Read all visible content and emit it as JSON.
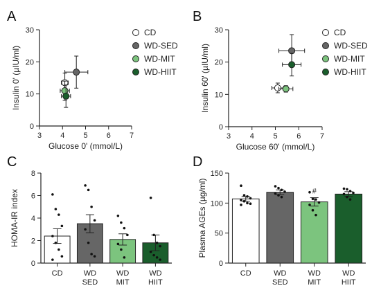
{
  "panels": [
    {
      "letter": "A"
    },
    {
      "letter": "B"
    },
    {
      "letter": "C"
    },
    {
      "letter": "D"
    }
  ],
  "chart_data": [
    {
      "type": "scatter",
      "panel": "A",
      "xlabel": "Glucose 0' (mmol/L)",
      "ylabel": "Insulin 0' (µIU/ml)",
      "xlim": [
        3,
        7
      ],
      "ylim": [
        0,
        30
      ],
      "xticks": [
        3,
        4,
        5,
        6,
        7
      ],
      "yticks": [
        0,
        10,
        20,
        30
      ],
      "legend_position": "right",
      "series": [
        {
          "name": "CD",
          "color": "#ffffff",
          "x": 4.1,
          "y": 13.5,
          "xerr": 0.15,
          "yerr": 3.0
        },
        {
          "name": "WD-SED",
          "color": "#666666",
          "x": 4.6,
          "y": 16.8,
          "xerr": 0.5,
          "yerr": 5.0
        },
        {
          "name": "WD-MIT",
          "color": "#7cc47e",
          "x": 4.1,
          "y": 11.0,
          "xerr": 0.2,
          "yerr": 3.0
        },
        {
          "name": "WD-HIIT",
          "color": "#1a5e2c",
          "x": 4.15,
          "y": 9.3,
          "xerr": 0.2,
          "yerr": 3.5
        }
      ]
    },
    {
      "type": "scatter",
      "panel": "B",
      "xlabel": "Glucose 60' (mmol/L)",
      "ylabel": "Insulin 60' (µIU/ml)",
      "xlim": [
        3,
        7
      ],
      "ylim": [
        0,
        30
      ],
      "xticks": [
        3,
        4,
        5,
        6,
        7
      ],
      "yticks": [
        0,
        10,
        20,
        30
      ],
      "legend_position": "right",
      "series": [
        {
          "name": "CD",
          "color": "#ffffff",
          "x": 5.1,
          "y": 12.0,
          "xerr": 0.25,
          "yerr": 1.5
        },
        {
          "name": "WD-SED",
          "color": "#666666",
          "x": 5.7,
          "y": 23.5,
          "xerr": 0.55,
          "yerr": 5.0
        },
        {
          "name": "WD-MIT",
          "color": "#7cc47e",
          "x": 5.45,
          "y": 11.7,
          "xerr": 0.3,
          "yerr": 1.0
        },
        {
          "name": "WD-HIIT",
          "color": "#1a5e2c",
          "x": 5.7,
          "y": 19.2,
          "xerr": 0.4,
          "yerr": 3.5
        }
      ]
    },
    {
      "type": "bar",
      "panel": "C",
      "ylabel": "HOMA-IR index",
      "ylim": [
        0,
        8
      ],
      "yticks": [
        0,
        2,
        4,
        6,
        8
      ],
      "categories": [
        [
          "CD"
        ],
        [
          "WD",
          "SED"
        ],
        [
          "WD",
          "MIT"
        ],
        [
          "WD",
          "HIIT"
        ]
      ],
      "values": [
        2.4,
        3.5,
        2.1,
        1.8
      ],
      "errors": [
        0.65,
        0.8,
        0.5,
        0.7
      ],
      "colors": [
        "#ffffff",
        "#666666",
        "#7cc47e",
        "#1a5e2c"
      ],
      "points": [
        [
          6.1,
          4.8,
          4.3,
          3.3,
          2.4,
          1.8,
          1.2,
          0.6,
          0.3
        ],
        [
          6.9,
          6.5,
          5.0,
          3.8,
          3.0,
          1.8,
          0.8,
          0.6
        ],
        [
          4.2,
          3.6,
          3.1,
          2.5,
          1.7,
          1.2,
          0.5
        ],
        [
          5.8,
          2.5,
          1.8,
          1.5,
          1.0,
          0.7,
          0.5,
          0.3
        ]
      ],
      "annotations": [
        "",
        "",
        "",
        ""
      ]
    },
    {
      "type": "bar",
      "panel": "D",
      "ylabel": "Plasma AGEs (µg/ml)",
      "ylim": [
        0,
        150
      ],
      "yticks": [
        0,
        50,
        100,
        150
      ],
      "categories": [
        [
          "CD"
        ],
        [
          "WD",
          "SED"
        ],
        [
          "WD",
          "MIT"
        ],
        [
          "WD",
          "HIIT"
        ]
      ],
      "values": [
        107,
        118,
        102,
        115
      ],
      "errors": [
        4,
        4,
        7,
        4
      ],
      "colors": [
        "#ffffff",
        "#666666",
        "#7cc47e",
        "#1a5e2c"
      ],
      "points": [
        [
          129,
          113,
          111,
          108,
          105,
          103,
          100,
          99,
          97
        ],
        [
          128,
          125,
          122,
          119,
          116,
          113,
          110
        ],
        [
          118,
          107,
          106,
          101,
          97,
          88,
          80
        ],
        [
          124,
          123,
          120,
          117,
          115,
          110,
          106
        ]
      ],
      "annotations": [
        "",
        "",
        "#",
        ""
      ]
    }
  ]
}
